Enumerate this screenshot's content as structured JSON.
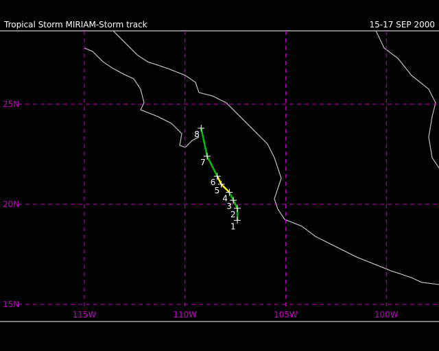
{
  "header": {
    "title": "Tropical Storm MIRIAM-Storm track",
    "date": "15-17 SEP 2000"
  },
  "map": {
    "lat_lines": [
      {
        "value": 25,
        "label": "25N"
      },
      {
        "value": 20,
        "label": "20N"
      },
      {
        "value": 15,
        "label": "15N"
      }
    ],
    "lon_lines": [
      {
        "value": 115,
        "label": "115W"
      },
      {
        "value": 110,
        "label": "110W"
      },
      {
        "value": 105,
        "label": "105W"
      },
      {
        "value": 100,
        "label": "100W"
      }
    ],
    "grid_color": "#c000c0",
    "track": {
      "points": [
        {
          "label": "1",
          "lon": 107.4,
          "lat": 19.2
        },
        {
          "label": "2",
          "lon": 107.4,
          "lat": 19.8
        },
        {
          "label": "3",
          "lon": 107.6,
          "lat": 20.2
        },
        {
          "label": "4",
          "lon": 107.8,
          "lat": 20.6
        },
        {
          "label": "5",
          "lon": 108.2,
          "lat": 21.0
        },
        {
          "label": "6",
          "lon": 108.4,
          "lat": 21.4
        },
        {
          "label": "7",
          "lon": 108.9,
          "lat": 22.4
        },
        {
          "label": "8",
          "lon": 109.2,
          "lat": 23.8
        }
      ],
      "segment_colors": [
        "#00c000",
        "#00c000",
        "#00c000",
        "#ffff00",
        "#ffff00",
        "#00c000",
        "#00c000"
      ]
    }
  }
}
